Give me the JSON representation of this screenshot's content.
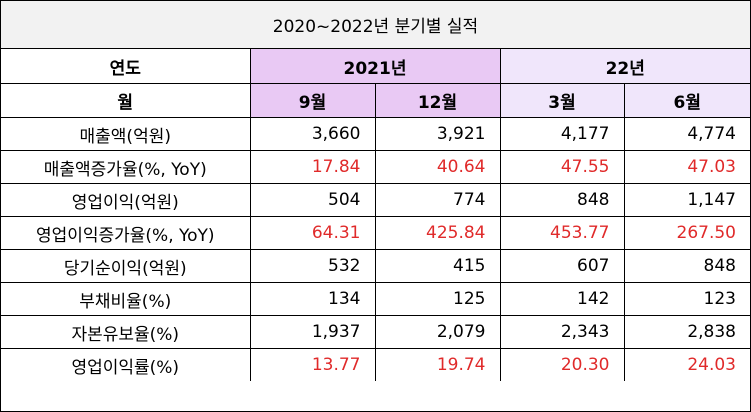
{
  "title": "2020~2022년 분기별 실적",
  "header": {
    "year_label": "연도",
    "year_groups": [
      "2021년",
      "22년"
    ],
    "month_label": "월",
    "months": [
      "9월",
      "12월",
      "3월",
      "6월"
    ]
  },
  "rows": [
    {
      "label": "매출액(억원)",
      "values": [
        "3,660",
        "3,921",
        "4,177",
        "4,774"
      ],
      "highlight": false
    },
    {
      "label": "매출액증가율(%, YoY)",
      "values": [
        "17.84",
        "40.64",
        "47.55",
        "47.03"
      ],
      "highlight": true
    },
    {
      "label": "영업이익(억원)",
      "values": [
        "504",
        "774",
        "848",
        "1,147"
      ],
      "highlight": false
    },
    {
      "label": "영업이익증가율(%, YoY)",
      "values": [
        "64.31",
        "425.84",
        "453.77",
        "267.50"
      ],
      "highlight": true
    },
    {
      "label": "당기순이익(억원)",
      "values": [
        "532",
        "415",
        "607",
        "848"
      ],
      "highlight": false
    },
    {
      "label": "부채비율(%)",
      "values": [
        "134",
        "125",
        "142",
        "123"
      ],
      "highlight": false
    },
    {
      "label": "자본유보율(%)",
      "values": [
        "1,937",
        "2,079",
        "2,343",
        "2,838"
      ],
      "highlight": false
    },
    {
      "label": "영업이익률(%)",
      "values": [
        "13.77",
        "19.74",
        "20.30",
        "24.03"
      ],
      "highlight": true
    }
  ],
  "colors": {
    "header_2021": "#e9c9f4",
    "header_22": "#f0e6fb",
    "highlight_text": "#e02a2a",
    "title_bg": "#f2f2f2"
  }
}
